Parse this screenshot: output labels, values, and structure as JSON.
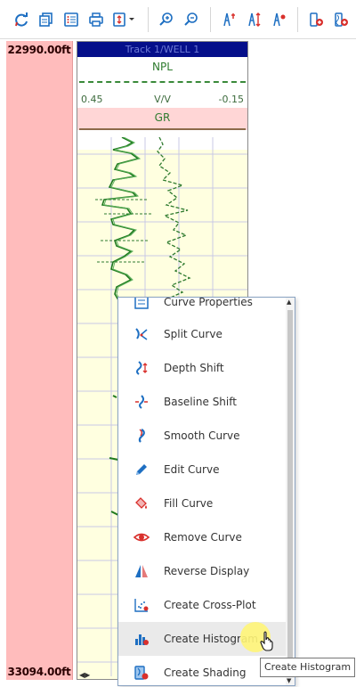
{
  "toolbar": {
    "buttons": [
      {
        "name": "refresh-icon"
      },
      {
        "name": "copy-icon"
      },
      {
        "name": "list-icon"
      },
      {
        "name": "print-icon"
      },
      {
        "name": "page-setup-dropdown-icon"
      },
      {
        "name": "zoom-in-icon"
      },
      {
        "name": "zoom-out-icon"
      },
      {
        "name": "well-top-icon"
      },
      {
        "name": "well-depth-icon"
      },
      {
        "name": "well-marker-icon"
      },
      {
        "name": "add-track-icon"
      },
      {
        "name": "add-curve-track-icon"
      }
    ]
  },
  "depth_track": {
    "top_depth": "22990.00ft",
    "bottom_depth": "33094.00ft"
  },
  "log_track": {
    "title": "Track 1/WELL 1",
    "curves": [
      {
        "name": "NPL",
        "left_scale": "0.45",
        "unit": "V/V",
        "right_scale": "-0.15",
        "color": "#2f7b2f",
        "style": "dashed"
      },
      {
        "name": "GR",
        "color": "#2f7b2f",
        "style": "solid"
      }
    ],
    "background": "#ffffe0"
  },
  "context_menu": {
    "items": [
      {
        "label": "Curve Properties",
        "icon": "curve-properties-icon"
      },
      {
        "label": "Split Curve",
        "icon": "split-curve-icon"
      },
      {
        "label": "Depth Shift",
        "icon": "depth-shift-icon"
      },
      {
        "label": "Baseline Shift",
        "icon": "baseline-shift-icon"
      },
      {
        "label": "Smooth Curve",
        "icon": "smooth-curve-icon"
      },
      {
        "label": "Edit Curve",
        "icon": "edit-curve-icon"
      },
      {
        "label": "Fill Curve",
        "icon": "fill-curve-icon"
      },
      {
        "label": "Remove Curve",
        "icon": "remove-curve-icon"
      },
      {
        "label": "Reverse Display",
        "icon": "reverse-display-icon"
      },
      {
        "label": "Create Cross-Plot",
        "icon": "cross-plot-icon"
      },
      {
        "label": "Create Histogram",
        "icon": "histogram-icon",
        "hovered": true
      },
      {
        "label": "Create Shading",
        "icon": "shading-icon"
      }
    ]
  },
  "tooltip": {
    "text": "Create Histogram"
  },
  "colors": {
    "accent_blue": "#1e6fc2",
    "accent_red": "#d9302c",
    "depth_bg": "#ffbcbc",
    "track_title_bg": "#050f8a"
  }
}
